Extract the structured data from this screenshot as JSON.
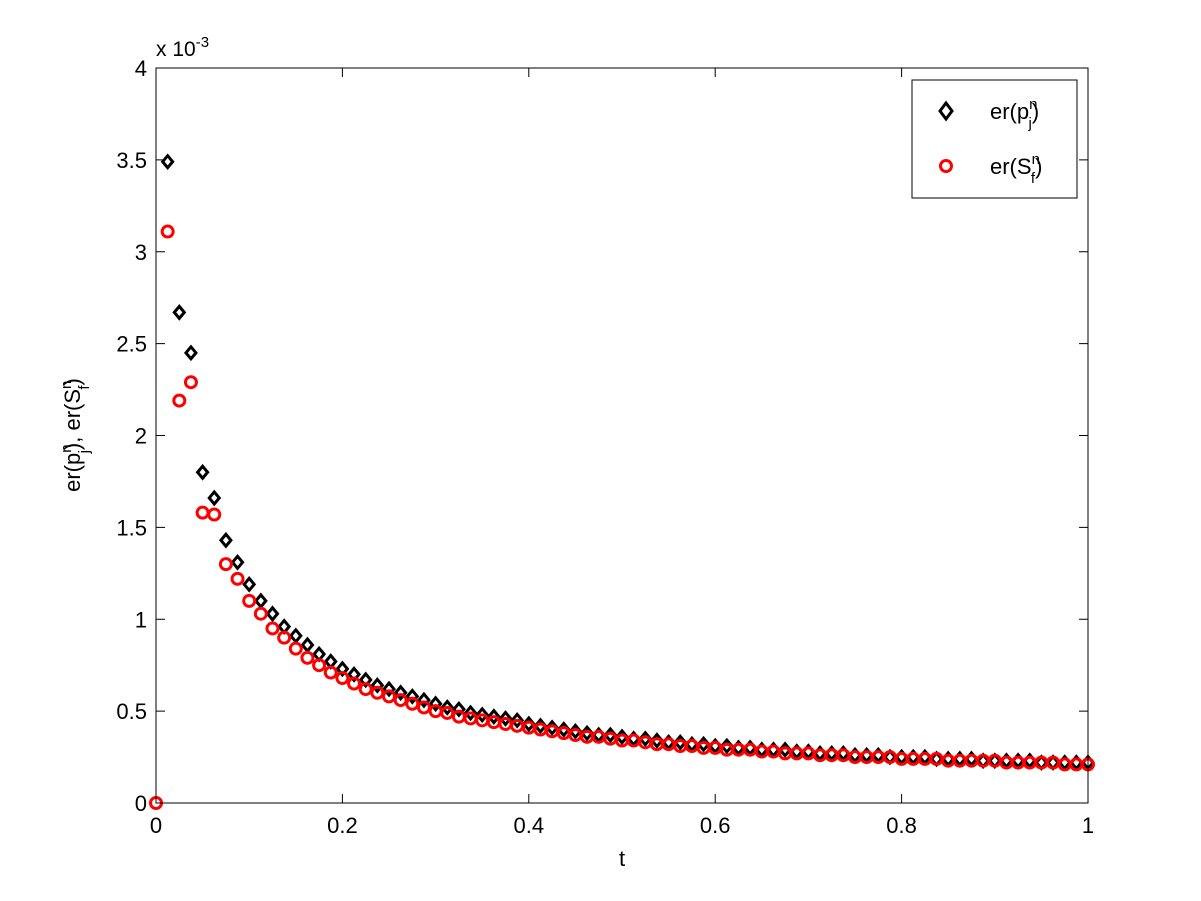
{
  "chart_data": {
    "type": "scatter",
    "xlabel": "t",
    "ylabel": "er(p_j^n), er(S_f^n)",
    "ylabel_parts": {
      "a": "er(p",
      "a_sup": "n",
      "a_sub": "j",
      "mid": "), er(S",
      "b_sup": "n",
      "b_sub": "f",
      "end": ")"
    },
    "xlim": [
      0,
      1
    ],
    "ylim": [
      0,
      0.004
    ],
    "xticks": [
      0,
      0.2,
      0.4,
      0.6,
      0.8,
      1
    ],
    "xtick_labels": [
      "0",
      "0.2",
      "0.4",
      "0.6",
      "0.8",
      "1"
    ],
    "yticks": [
      0,
      0.0005,
      0.001,
      0.0015,
      0.002,
      0.0025,
      0.003,
      0.0035,
      0.004
    ],
    "ytick_labels": [
      "0",
      "0.5",
      "1",
      "1.5",
      "2",
      "2.5",
      "3",
      "3.5",
      "4"
    ],
    "exponent_label": {
      "prefix": "x 10",
      "sup": "-3"
    },
    "grid": false,
    "legend": {
      "placement": "top-right"
    },
    "series": [
      {
        "name": "er(p_j^n)",
        "legend_parts": {
          "a": "er(p",
          "sup": "n",
          "sub": "j",
          "end": ")"
        },
        "marker": "diamond",
        "color": "#000000",
        "x": [
          0.0125,
          0.025,
          0.0375,
          0.05,
          0.0625,
          0.075,
          0.0875,
          0.1,
          0.1125,
          0.125,
          0.1375,
          0.15,
          0.1625,
          0.175,
          0.1875,
          0.2,
          0.2125,
          0.225,
          0.2375,
          0.25,
          0.2625,
          0.275,
          0.2875,
          0.3,
          0.3125,
          0.325,
          0.3375,
          0.35,
          0.3625,
          0.375,
          0.3875,
          0.4,
          0.4125,
          0.425,
          0.4375,
          0.45,
          0.4625,
          0.475,
          0.4875,
          0.5,
          0.5125,
          0.525,
          0.5375,
          0.55,
          0.5625,
          0.575,
          0.5875,
          0.6,
          0.6125,
          0.625,
          0.6375,
          0.65,
          0.6625,
          0.675,
          0.6875,
          0.7,
          0.7125,
          0.725,
          0.7375,
          0.75,
          0.7625,
          0.775,
          0.7875,
          0.8,
          0.8125,
          0.825,
          0.8375,
          0.85,
          0.8625,
          0.875,
          0.8875,
          0.9,
          0.9125,
          0.925,
          0.9375,
          0.95,
          0.9625,
          0.975,
          0.9875,
          1.0
        ],
        "y": [
          0.00349,
          0.00267,
          0.00245,
          0.0018,
          0.00166,
          0.00143,
          0.00131,
          0.00119,
          0.0011,
          0.00103,
          0.00096,
          0.00091,
          0.00086,
          0.00081,
          0.00077,
          0.00073,
          0.0007,
          0.00067,
          0.00064,
          0.00062,
          0.0006,
          0.00058,
          0.00056,
          0.00054,
          0.00052,
          0.00051,
          0.00049,
          0.00048,
          0.00047,
          0.00046,
          0.00045,
          0.00043,
          0.00042,
          0.00041,
          0.0004,
          0.00039,
          0.00038,
          0.00037,
          0.00037,
          0.00036,
          0.00035,
          0.00035,
          0.00034,
          0.00033,
          0.00033,
          0.00032,
          0.00032,
          0.00031,
          0.00031,
          0.0003,
          0.0003,
          0.00029,
          0.00029,
          0.00029,
          0.00028,
          0.00028,
          0.00027,
          0.00027,
          0.00027,
          0.00026,
          0.00026,
          0.00026,
          0.00025,
          0.00025,
          0.00025,
          0.00025,
          0.00024,
          0.00024,
          0.00024,
          0.00024,
          0.00023,
          0.00023,
          0.00023,
          0.00023,
          0.00023,
          0.00022,
          0.00022,
          0.00022,
          0.00022,
          0.00022
        ]
      },
      {
        "name": "er(S_f^n)",
        "legend_parts": {
          "a": "er(S",
          "sup": "n",
          "sub": "f",
          "end": ")"
        },
        "marker": "circle",
        "color": "#ff0000",
        "x": [
          0.0,
          0.0125,
          0.025,
          0.0375,
          0.05,
          0.0625,
          0.075,
          0.0875,
          0.1,
          0.1125,
          0.125,
          0.1375,
          0.15,
          0.1625,
          0.175,
          0.1875,
          0.2,
          0.2125,
          0.225,
          0.2375,
          0.25,
          0.2625,
          0.275,
          0.2875,
          0.3,
          0.3125,
          0.325,
          0.3375,
          0.35,
          0.3625,
          0.375,
          0.3875,
          0.4,
          0.4125,
          0.425,
          0.4375,
          0.45,
          0.4625,
          0.475,
          0.4875,
          0.5,
          0.5125,
          0.525,
          0.5375,
          0.55,
          0.5625,
          0.575,
          0.5875,
          0.6,
          0.6125,
          0.625,
          0.6375,
          0.65,
          0.6625,
          0.675,
          0.6875,
          0.7,
          0.7125,
          0.725,
          0.7375,
          0.75,
          0.7625,
          0.775,
          0.7875,
          0.8,
          0.8125,
          0.825,
          0.8375,
          0.85,
          0.8625,
          0.875,
          0.8875,
          0.9,
          0.9125,
          0.925,
          0.9375,
          0.95,
          0.9625,
          0.975,
          0.9875,
          1.0
        ],
        "y": [
          0.0,
          0.00311,
          0.00219,
          0.00229,
          0.00158,
          0.00157,
          0.0013,
          0.00122,
          0.0011,
          0.00103,
          0.00095,
          0.0009,
          0.00084,
          0.00079,
          0.00075,
          0.00071,
          0.00068,
          0.00065,
          0.00062,
          0.0006,
          0.00058,
          0.00056,
          0.00054,
          0.00052,
          0.0005,
          0.00049,
          0.00047,
          0.00046,
          0.00045,
          0.00044,
          0.00043,
          0.00042,
          0.00041,
          0.0004,
          0.00039,
          0.00038,
          0.00037,
          0.00036,
          0.00036,
          0.00035,
          0.00034,
          0.00034,
          0.00033,
          0.00032,
          0.00032,
          0.00031,
          0.00031,
          0.0003,
          0.0003,
          0.00029,
          0.00029,
          0.00029,
          0.00028,
          0.00028,
          0.00027,
          0.00027,
          0.00027,
          0.00026,
          0.00026,
          0.00026,
          0.00025,
          0.00025,
          0.00025,
          0.00025,
          0.00024,
          0.00024,
          0.00024,
          0.00024,
          0.00023,
          0.00023,
          0.00023,
          0.00023,
          0.00023,
          0.00022,
          0.00022,
          0.00022,
          0.00022,
          0.00022,
          0.00021,
          0.00021,
          0.00021
        ]
      }
    ]
  }
}
